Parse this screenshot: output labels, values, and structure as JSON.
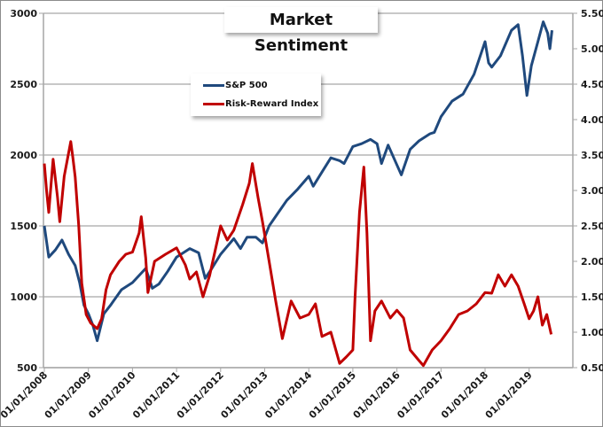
{
  "chart_data": {
    "type": "line",
    "title": "Market Sentiment",
    "xlabel": "",
    "ylabel": "",
    "y2label": "",
    "grid": true,
    "legend_position": "top-center-left",
    "x_tick_labels": [
      "01/01/2008",
      "01/01/2009",
      "01/01/2010",
      "01/01/2011",
      "01/01/2012",
      "01/01/2013",
      "01/01/2014",
      "01/01/2015",
      "01/01/2016",
      "01/01/2017",
      "01/01/2018",
      "01/01/2019"
    ],
    "x_range": [
      2008.0,
      2020.0
    ],
    "y_left": {
      "range": [
        500,
        3000
      ],
      "ticks": [
        "500",
        "1000",
        "1500",
        "2000",
        "2500",
        "3000"
      ]
    },
    "y_right": {
      "range": [
        0.5,
        5.5
      ],
      "ticks": [
        "0.50",
        "1.00",
        "1.50",
        "2.00",
        "2.50",
        "3.00",
        "3.50",
        "4.00",
        "4.50",
        "5.00",
        "5.50"
      ]
    },
    "series": [
      {
        "name": "S&P 500",
        "axis": "left",
        "color": "#1f497d",
        "x": [
          2008.0,
          2008.1,
          2008.25,
          2008.4,
          2008.55,
          2008.7,
          2008.8,
          2008.9,
          2009.0,
          2009.1,
          2009.2,
          2009.35,
          2009.5,
          2009.75,
          2010.0,
          2010.3,
          2010.45,
          2010.6,
          2010.8,
          2011.0,
          2011.3,
          2011.5,
          2011.65,
          2011.8,
          2012.0,
          2012.3,
          2012.45,
          2012.6,
          2012.8,
          2012.95,
          2013.1,
          2013.3,
          2013.5,
          2013.75,
          2014.0,
          2014.1,
          2014.3,
          2014.5,
          2014.7,
          2014.8,
          2015.0,
          2015.2,
          2015.4,
          2015.55,
          2015.65,
          2015.8,
          2016.0,
          2016.1,
          2016.3,
          2016.5,
          2016.75,
          2016.85,
          2017.0,
          2017.25,
          2017.5,
          2017.75,
          2018.0,
          2018.08,
          2018.15,
          2018.35,
          2018.6,
          2018.75,
          2018.85,
          2018.95,
          2019.05,
          2019.2,
          2019.32,
          2019.42,
          2019.47,
          2019.52
        ],
        "values": [
          1500,
          1280,
          1330,
          1400,
          1300,
          1220,
          1100,
          940,
          880,
          800,
          690,
          880,
          940,
          1050,
          1100,
          1200,
          1060,
          1090,
          1180,
          1280,
          1340,
          1310,
          1130,
          1200,
          1300,
          1410,
          1340,
          1420,
          1420,
          1380,
          1500,
          1590,
          1680,
          1760,
          1850,
          1780,
          1880,
          1980,
          1960,
          1940,
          2060,
          2080,
          2110,
          2080,
          1940,
          2070,
          1930,
          1860,
          2040,
          2100,
          2150,
          2160,
          2270,
          2380,
          2430,
          2570,
          2800,
          2650,
          2620,
          2700,
          2880,
          2920,
          2700,
          2420,
          2630,
          2800,
          2940,
          2860,
          2750,
          2880
        ]
      },
      {
        "name": "Risk-Reward Index",
        "axis": "right",
        "color": "#c00000",
        "x": [
          2008.0,
          2008.05,
          2008.1,
          2008.2,
          2008.3,
          2008.35,
          2008.45,
          2008.6,
          2008.65,
          2008.7,
          2008.78,
          2008.85,
          2008.95,
          2009.05,
          2009.2,
          2009.3,
          2009.4,
          2009.5,
          2009.7,
          2009.85,
          2010.0,
          2010.15,
          2010.2,
          2010.3,
          2010.35,
          2010.5,
          2010.75,
          2011.0,
          2011.2,
          2011.3,
          2011.45,
          2011.6,
          2011.75,
          2012.0,
          2012.15,
          2012.3,
          2012.5,
          2012.65,
          2012.72,
          2012.85,
          2012.95,
          2013.1,
          2013.25,
          2013.4,
          2013.6,
          2013.8,
          2014.0,
          2014.15,
          2014.3,
          2014.5,
          2014.7,
          2014.85,
          2015.0,
          2015.05,
          2015.15,
          2015.25,
          2015.32,
          2015.4,
          2015.5,
          2015.65,
          2015.85,
          2016.0,
          2016.15,
          2016.3,
          2016.5,
          2016.6,
          2016.8,
          2017.0,
          2017.2,
          2017.4,
          2017.6,
          2017.8,
          2018.0,
          2018.15,
          2018.3,
          2018.45,
          2018.6,
          2018.75,
          2018.9,
          2019.0,
          2019.1,
          2019.2,
          2019.3,
          2019.4,
          2019.5
        ],
        "values": [
          3.38,
          3.0,
          2.69,
          3.44,
          2.9,
          2.56,
          3.2,
          3.69,
          3.45,
          3.19,
          2.5,
          1.69,
          1.25,
          1.13,
          1.05,
          1.19,
          1.6,
          1.81,
          2.0,
          2.1,
          2.13,
          2.4,
          2.63,
          2.05,
          1.56,
          2.0,
          2.1,
          2.19,
          1.95,
          1.75,
          1.85,
          1.5,
          1.8,
          2.5,
          2.3,
          2.44,
          2.8,
          3.1,
          3.38,
          2.9,
          2.56,
          2.0,
          1.44,
          0.91,
          1.44,
          1.2,
          1.25,
          1.4,
          0.94,
          1.0,
          0.56,
          0.65,
          0.75,
          1.5,
          2.69,
          3.33,
          2.4,
          0.88,
          1.3,
          1.44,
          1.2,
          1.31,
          1.2,
          0.75,
          0.6,
          0.53,
          0.75,
          0.88,
          1.05,
          1.25,
          1.3,
          1.4,
          1.56,
          1.55,
          1.81,
          1.65,
          1.81,
          1.65,
          1.38,
          1.19,
          1.3,
          1.5,
          1.1,
          1.25,
          0.97
        ]
      }
    ]
  }
}
